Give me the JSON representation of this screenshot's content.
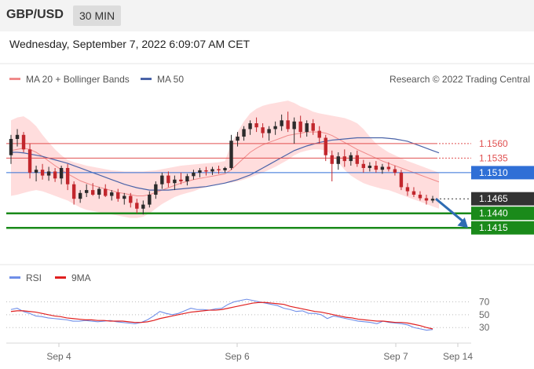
{
  "header": {
    "pair": "GBP/USD",
    "timeframe": "30 MIN",
    "timestamp": "Wednesday, September 7, 2022 6:09:07 AM CET",
    "copyright": "Research © 2022 Trading Central"
  },
  "legend": {
    "ma20": "MA 20 + Bollinger Bands",
    "ma50": "MA 50",
    "rsi": "RSI",
    "ma9": "9MA"
  },
  "colors": {
    "candle": "#c2272d",
    "candle_dark": "#2b2b2b",
    "bollinger": "#ffd2d2",
    "ma20": "#f08a8a",
    "ma50": "#4a63a8",
    "resistance": "#e05050",
    "pivot": "#2f6fd6",
    "support": "#1a8a1a",
    "current": "#333333",
    "arrow": "#2e6cb3",
    "rsi": "#6f8ee8",
    "ma9": "#e02020"
  },
  "chart_data": [
    {
      "type": "candlestick",
      "title": "GBP/USD",
      "x_tick_labels": [
        "Sep 4",
        "Sep 6",
        "Sep 7",
        "Sep 14"
      ],
      "ylim": [
        1.1395,
        1.1645
      ],
      "levels": [
        {
          "label": "1.1560",
          "value": 1.156,
          "kind": "resistance"
        },
        {
          "label": "1.1535",
          "value": 1.1535,
          "kind": "resistance"
        },
        {
          "label": "1.1510",
          "value": 1.151,
          "kind": "pivot"
        },
        {
          "label": "1.1465",
          "value": 1.1465,
          "kind": "current"
        },
        {
          "label": "1.1440",
          "value": 1.144,
          "kind": "support"
        },
        {
          "label": "1.1415",
          "value": 1.1415,
          "kind": "support"
        }
      ],
      "candles": [
        {
          "o": 1.154,
          "h": 1.1575,
          "l": 1.1525,
          "c": 1.1568
        },
        {
          "o": 1.1568,
          "h": 1.1585,
          "l": 1.1555,
          "c": 1.1575
        },
        {
          "o": 1.1575,
          "h": 1.158,
          "l": 1.1545,
          "c": 1.155
        },
        {
          "o": 1.155,
          "h": 1.156,
          "l": 1.15,
          "c": 1.151
        },
        {
          "o": 1.151,
          "h": 1.1522,
          "l": 1.1495,
          "c": 1.1515
        },
        {
          "o": 1.1515,
          "h": 1.1525,
          "l": 1.1498,
          "c": 1.1505
        },
        {
          "o": 1.1505,
          "h": 1.152,
          "l": 1.1496,
          "c": 1.1512
        },
        {
          "o": 1.1512,
          "h": 1.1518,
          "l": 1.1494,
          "c": 1.15
        },
        {
          "o": 1.15,
          "h": 1.1522,
          "l": 1.149,
          "c": 1.1518
        },
        {
          "o": 1.1518,
          "h": 1.1525,
          "l": 1.148,
          "c": 1.149
        },
        {
          "o": 1.149,
          "h": 1.1495,
          "l": 1.1455,
          "c": 1.1465
        },
        {
          "o": 1.1465,
          "h": 1.148,
          "l": 1.1458,
          "c": 1.1475
        },
        {
          "o": 1.1475,
          "h": 1.149,
          "l": 1.1468,
          "c": 1.148
        },
        {
          "o": 1.148,
          "h": 1.1492,
          "l": 1.147,
          "c": 1.1472
        },
        {
          "o": 1.1472,
          "h": 1.1485,
          "l": 1.1465,
          "c": 1.1482
        },
        {
          "o": 1.1482,
          "h": 1.149,
          "l": 1.1468,
          "c": 1.147
        },
        {
          "o": 1.147,
          "h": 1.148,
          "l": 1.1462,
          "c": 1.1476
        },
        {
          "o": 1.1476,
          "h": 1.1482,
          "l": 1.146,
          "c": 1.1465
        },
        {
          "o": 1.1465,
          "h": 1.1475,
          "l": 1.1455,
          "c": 1.147
        },
        {
          "o": 1.147,
          "h": 1.1475,
          "l": 1.145,
          "c": 1.1458
        },
        {
          "o": 1.1458,
          "h": 1.1465,
          "l": 1.144,
          "c": 1.1448
        },
        {
          "o": 1.1448,
          "h": 1.1462,
          "l": 1.1438,
          "c": 1.1455
        },
        {
          "o": 1.1455,
          "h": 1.1478,
          "l": 1.145,
          "c": 1.1472
        },
        {
          "o": 1.1472,
          "h": 1.1495,
          "l": 1.1465,
          "c": 1.149
        },
        {
          "o": 1.149,
          "h": 1.151,
          "l": 1.1482,
          "c": 1.1505
        },
        {
          "o": 1.1505,
          "h": 1.1512,
          "l": 1.1485,
          "c": 1.1492
        },
        {
          "o": 1.1492,
          "h": 1.1505,
          "l": 1.148,
          "c": 1.1498
        },
        {
          "o": 1.1498,
          "h": 1.151,
          "l": 1.149,
          "c": 1.1495
        },
        {
          "o": 1.1495,
          "h": 1.1508,
          "l": 1.1488,
          "c": 1.1504
        },
        {
          "o": 1.1504,
          "h": 1.1515,
          "l": 1.1498,
          "c": 1.151
        },
        {
          "o": 1.151,
          "h": 1.1518,
          "l": 1.1502,
          "c": 1.1514
        },
        {
          "o": 1.1514,
          "h": 1.152,
          "l": 1.1505,
          "c": 1.1512
        },
        {
          "o": 1.1512,
          "h": 1.152,
          "l": 1.1506,
          "c": 1.1516
        },
        {
          "o": 1.1516,
          "h": 1.1522,
          "l": 1.1508,
          "c": 1.1514
        },
        {
          "o": 1.1514,
          "h": 1.152,
          "l": 1.151,
          "c": 1.1518
        },
        {
          "o": 1.1518,
          "h": 1.1575,
          "l": 1.1515,
          "c": 1.1565
        },
        {
          "o": 1.1565,
          "h": 1.158,
          "l": 1.1555,
          "c": 1.1572
        },
        {
          "o": 1.1572,
          "h": 1.159,
          "l": 1.1565,
          "c": 1.1585
        },
        {
          "o": 1.1585,
          "h": 1.16,
          "l": 1.1575,
          "c": 1.1595
        },
        {
          "o": 1.1595,
          "h": 1.1605,
          "l": 1.158,
          "c": 1.1588
        },
        {
          "o": 1.1588,
          "h": 1.1595,
          "l": 1.157,
          "c": 1.1578
        },
        {
          "o": 1.1578,
          "h": 1.159,
          "l": 1.1565,
          "c": 1.1585
        },
        {
          "o": 1.1585,
          "h": 1.1598,
          "l": 1.1575,
          "c": 1.159
        },
        {
          "o": 1.159,
          "h": 1.161,
          "l": 1.1582,
          "c": 1.16
        },
        {
          "o": 1.16,
          "h": 1.1615,
          "l": 1.158,
          "c": 1.1585
        },
        {
          "o": 1.1585,
          "h": 1.1605,
          "l": 1.156,
          "c": 1.1598
        },
        {
          "o": 1.1598,
          "h": 1.1608,
          "l": 1.157,
          "c": 1.158
        },
        {
          "o": 1.158,
          "h": 1.16,
          "l": 1.1572,
          "c": 1.1595
        },
        {
          "o": 1.1595,
          "h": 1.1602,
          "l": 1.1575,
          "c": 1.1582
        },
        {
          "o": 1.1582,
          "h": 1.159,
          "l": 1.156,
          "c": 1.157
        },
        {
          "o": 1.157,
          "h": 1.1575,
          "l": 1.153,
          "c": 1.154
        },
        {
          "o": 1.154,
          "h": 1.1548,
          "l": 1.1495,
          "c": 1.1525
        },
        {
          "o": 1.1525,
          "h": 1.1545,
          "l": 1.1515,
          "c": 1.1538
        },
        {
          "o": 1.1538,
          "h": 1.155,
          "l": 1.152,
          "c": 1.153
        },
        {
          "o": 1.153,
          "h": 1.1545,
          "l": 1.1522,
          "c": 1.154
        },
        {
          "o": 1.154,
          "h": 1.1548,
          "l": 1.152,
          "c": 1.1525
        },
        {
          "o": 1.1525,
          "h": 1.1532,
          "l": 1.151,
          "c": 1.1518
        },
        {
          "o": 1.1518,
          "h": 1.1528,
          "l": 1.1512,
          "c": 1.1522
        },
        {
          "o": 1.1522,
          "h": 1.153,
          "l": 1.151,
          "c": 1.1515
        },
        {
          "o": 1.1515,
          "h": 1.1525,
          "l": 1.1508,
          "c": 1.152
        },
        {
          "o": 1.152,
          "h": 1.1528,
          "l": 1.1512,
          "c": 1.1516
        },
        {
          "o": 1.1516,
          "h": 1.1522,
          "l": 1.1505,
          "c": 1.151
        },
        {
          "o": 1.151,
          "h": 1.1515,
          "l": 1.148,
          "c": 1.1485
        },
        {
          "o": 1.1485,
          "h": 1.1492,
          "l": 1.147,
          "c": 1.1478
        },
        {
          "o": 1.1478,
          "h": 1.1485,
          "l": 1.1468,
          "c": 1.1472
        },
        {
          "o": 1.1472,
          "h": 1.1478,
          "l": 1.1462,
          "c": 1.1466
        },
        {
          "o": 1.1466,
          "h": 1.1472,
          "l": 1.1455,
          "c": 1.1462
        },
        {
          "o": 1.1462,
          "h": 1.147,
          "l": 1.1458,
          "c": 1.1465
        }
      ],
      "bollinger_upper": [
        1.16,
        1.1605,
        1.1607,
        1.16,
        1.159,
        1.1575,
        1.1562,
        1.155,
        1.154,
        1.1532,
        1.1528,
        1.1525,
        1.1522,
        1.152,
        1.1518,
        1.1516,
        1.1514,
        1.1513,
        1.1512,
        1.1512,
        1.1512,
        1.1512,
        1.1513,
        1.1514,
        1.1516,
        1.1518,
        1.152,
        1.1522,
        1.1523,
        1.1524,
        1.1525,
        1.1526,
        1.1527,
        1.1528,
        1.153,
        1.156,
        1.158,
        1.1598,
        1.1612,
        1.162,
        1.1625,
        1.1628,
        1.163,
        1.1632,
        1.1634,
        1.163,
        1.1624,
        1.162,
        1.1615,
        1.1612,
        1.161,
        1.1608,
        1.1606,
        1.1604,
        1.16,
        1.1595,
        1.1585,
        1.1572,
        1.156,
        1.1552,
        1.1545,
        1.154,
        1.1535,
        1.153,
        1.1526,
        1.1522,
        1.1518,
        1.1514,
        1.151
      ],
      "bollinger_lower": [
        1.147,
        1.1472,
        1.1475,
        1.1478,
        1.148,
        1.1478,
        1.1474,
        1.147,
        1.1466,
        1.1462,
        1.1456,
        1.145,
        1.1446,
        1.1444,
        1.1442,
        1.144,
        1.1438,
        1.1436,
        1.1434,
        1.1432,
        1.1432,
        1.1434,
        1.144,
        1.1448,
        1.1456,
        1.1462,
        1.1468,
        1.1472,
        1.1475,
        1.1478,
        1.1482,
        1.1485,
        1.1488,
        1.149,
        1.1492,
        1.1493,
        1.1495,
        1.1498,
        1.1502,
        1.1506,
        1.151,
        1.1515,
        1.152,
        1.1526,
        1.1532,
        1.154,
        1.1545,
        1.1548,
        1.155,
        1.155,
        1.1548,
        1.154,
        1.1528,
        1.1515,
        1.1505,
        1.1498,
        1.1492,
        1.1488,
        1.1485,
        1.1482,
        1.148,
        1.1476,
        1.1472,
        1.1468,
        1.1464,
        1.146,
        1.1456,
        1.1452,
        1.1448
      ],
      "ma20": [
        1.1548,
        1.155,
        1.1552,
        1.155,
        1.1545,
        1.1538,
        1.153,
        1.1522,
        1.1515,
        1.1508,
        1.1502,
        1.1496,
        1.1492,
        1.1488,
        1.1485,
        1.1482,
        1.1479,
        1.1476,
        1.1474,
        1.1472,
        1.147,
        1.147,
        1.1472,
        1.1476,
        1.148,
        1.1484,
        1.1488,
        1.1492,
        1.1495,
        1.1498,
        1.15,
        1.1502,
        1.1504,
        1.1506,
        1.1508,
        1.1515,
        1.1525,
        1.1535,
        1.1545,
        1.1552,
        1.1558,
        1.1562,
        1.1566,
        1.157,
        1.1574,
        1.1576,
        1.1578,
        1.158,
        1.158,
        1.158,
        1.1578,
        1.1574,
        1.1568,
        1.1562,
        1.1556,
        1.155,
        1.1545,
        1.154,
        1.1535,
        1.153,
        1.1526,
        1.1522,
        1.1518,
        1.1514,
        1.151,
        1.1506,
        1.1502,
        1.1498,
        1.1494
      ],
      "ma50": [
        1.1545,
        1.1545,
        1.1544,
        1.1542,
        1.154,
        1.1538,
        1.1535,
        1.1532,
        1.1529,
        1.1526,
        1.1522,
        1.1518,
        1.1514,
        1.151,
        1.1506,
        1.1502,
        1.1498,
        1.1494,
        1.149,
        1.1487,
        1.1484,
        1.1482,
        1.148,
        1.148,
        1.148,
        1.148,
        1.1481,
        1.1482,
        1.1483,
        1.1484,
        1.1485,
        1.1486,
        1.1488,
        1.149,
        1.1492,
        1.1495,
        1.1498,
        1.1502,
        1.1506,
        1.1512,
        1.1518,
        1.1524,
        1.153,
        1.1536,
        1.1542,
        1.1548,
        1.1552,
        1.1556,
        1.1559,
        1.1562,
        1.1564,
        1.1566,
        1.1567,
        1.1568,
        1.1569,
        1.157,
        1.157,
        1.157,
        1.157,
        1.157,
        1.1569,
        1.1568,
        1.1566,
        1.1564,
        1.156,
        1.1556,
        1.1552,
        1.1548,
        1.1544
      ],
      "forecast": {
        "from": 1.1465,
        "to": 1.1415
      }
    },
    {
      "type": "line",
      "series": [
        {
          "name": "RSI",
          "values": [
            58,
            60,
            55,
            52,
            48,
            47,
            45,
            44,
            43,
            42,
            40,
            40,
            41,
            40,
            39,
            40,
            41,
            39,
            38,
            37,
            36,
            38,
            42,
            48,
            55,
            52,
            50,
            52,
            56,
            60,
            58,
            58,
            57,
            59,
            60,
            66,
            70,
            72,
            74,
            72,
            70,
            68,
            66,
            64,
            60,
            58,
            55,
            56,
            52,
            52,
            50,
            44,
            48,
            46,
            44,
            42,
            40,
            39,
            38,
            36,
            40,
            38,
            37,
            36,
            34,
            30,
            28,
            26,
            27
          ]
        },
        {
          "name": "9MA",
          "values": [
            55,
            56,
            56,
            55,
            54,
            52,
            50,
            48,
            47,
            45,
            44,
            43,
            42,
            42,
            41,
            41,
            40,
            40,
            40,
            39,
            38,
            38,
            39,
            41,
            44,
            46,
            48,
            50,
            52,
            54,
            55,
            56,
            57,
            57,
            58,
            60,
            62,
            64,
            66,
            68,
            69,
            69,
            68,
            67,
            66,
            63,
            61,
            59,
            57,
            55,
            54,
            52,
            50,
            48,
            46,
            45,
            43,
            42,
            41,
            40,
            40,
            39,
            38,
            38,
            37,
            35,
            33,
            30,
            28
          ]
        }
      ],
      "ylim": [
        12,
        90
      ],
      "y_tick_labels": [
        "70",
        "50",
        "30"
      ],
      "y_ticks": [
        70,
        50,
        30
      ]
    }
  ]
}
